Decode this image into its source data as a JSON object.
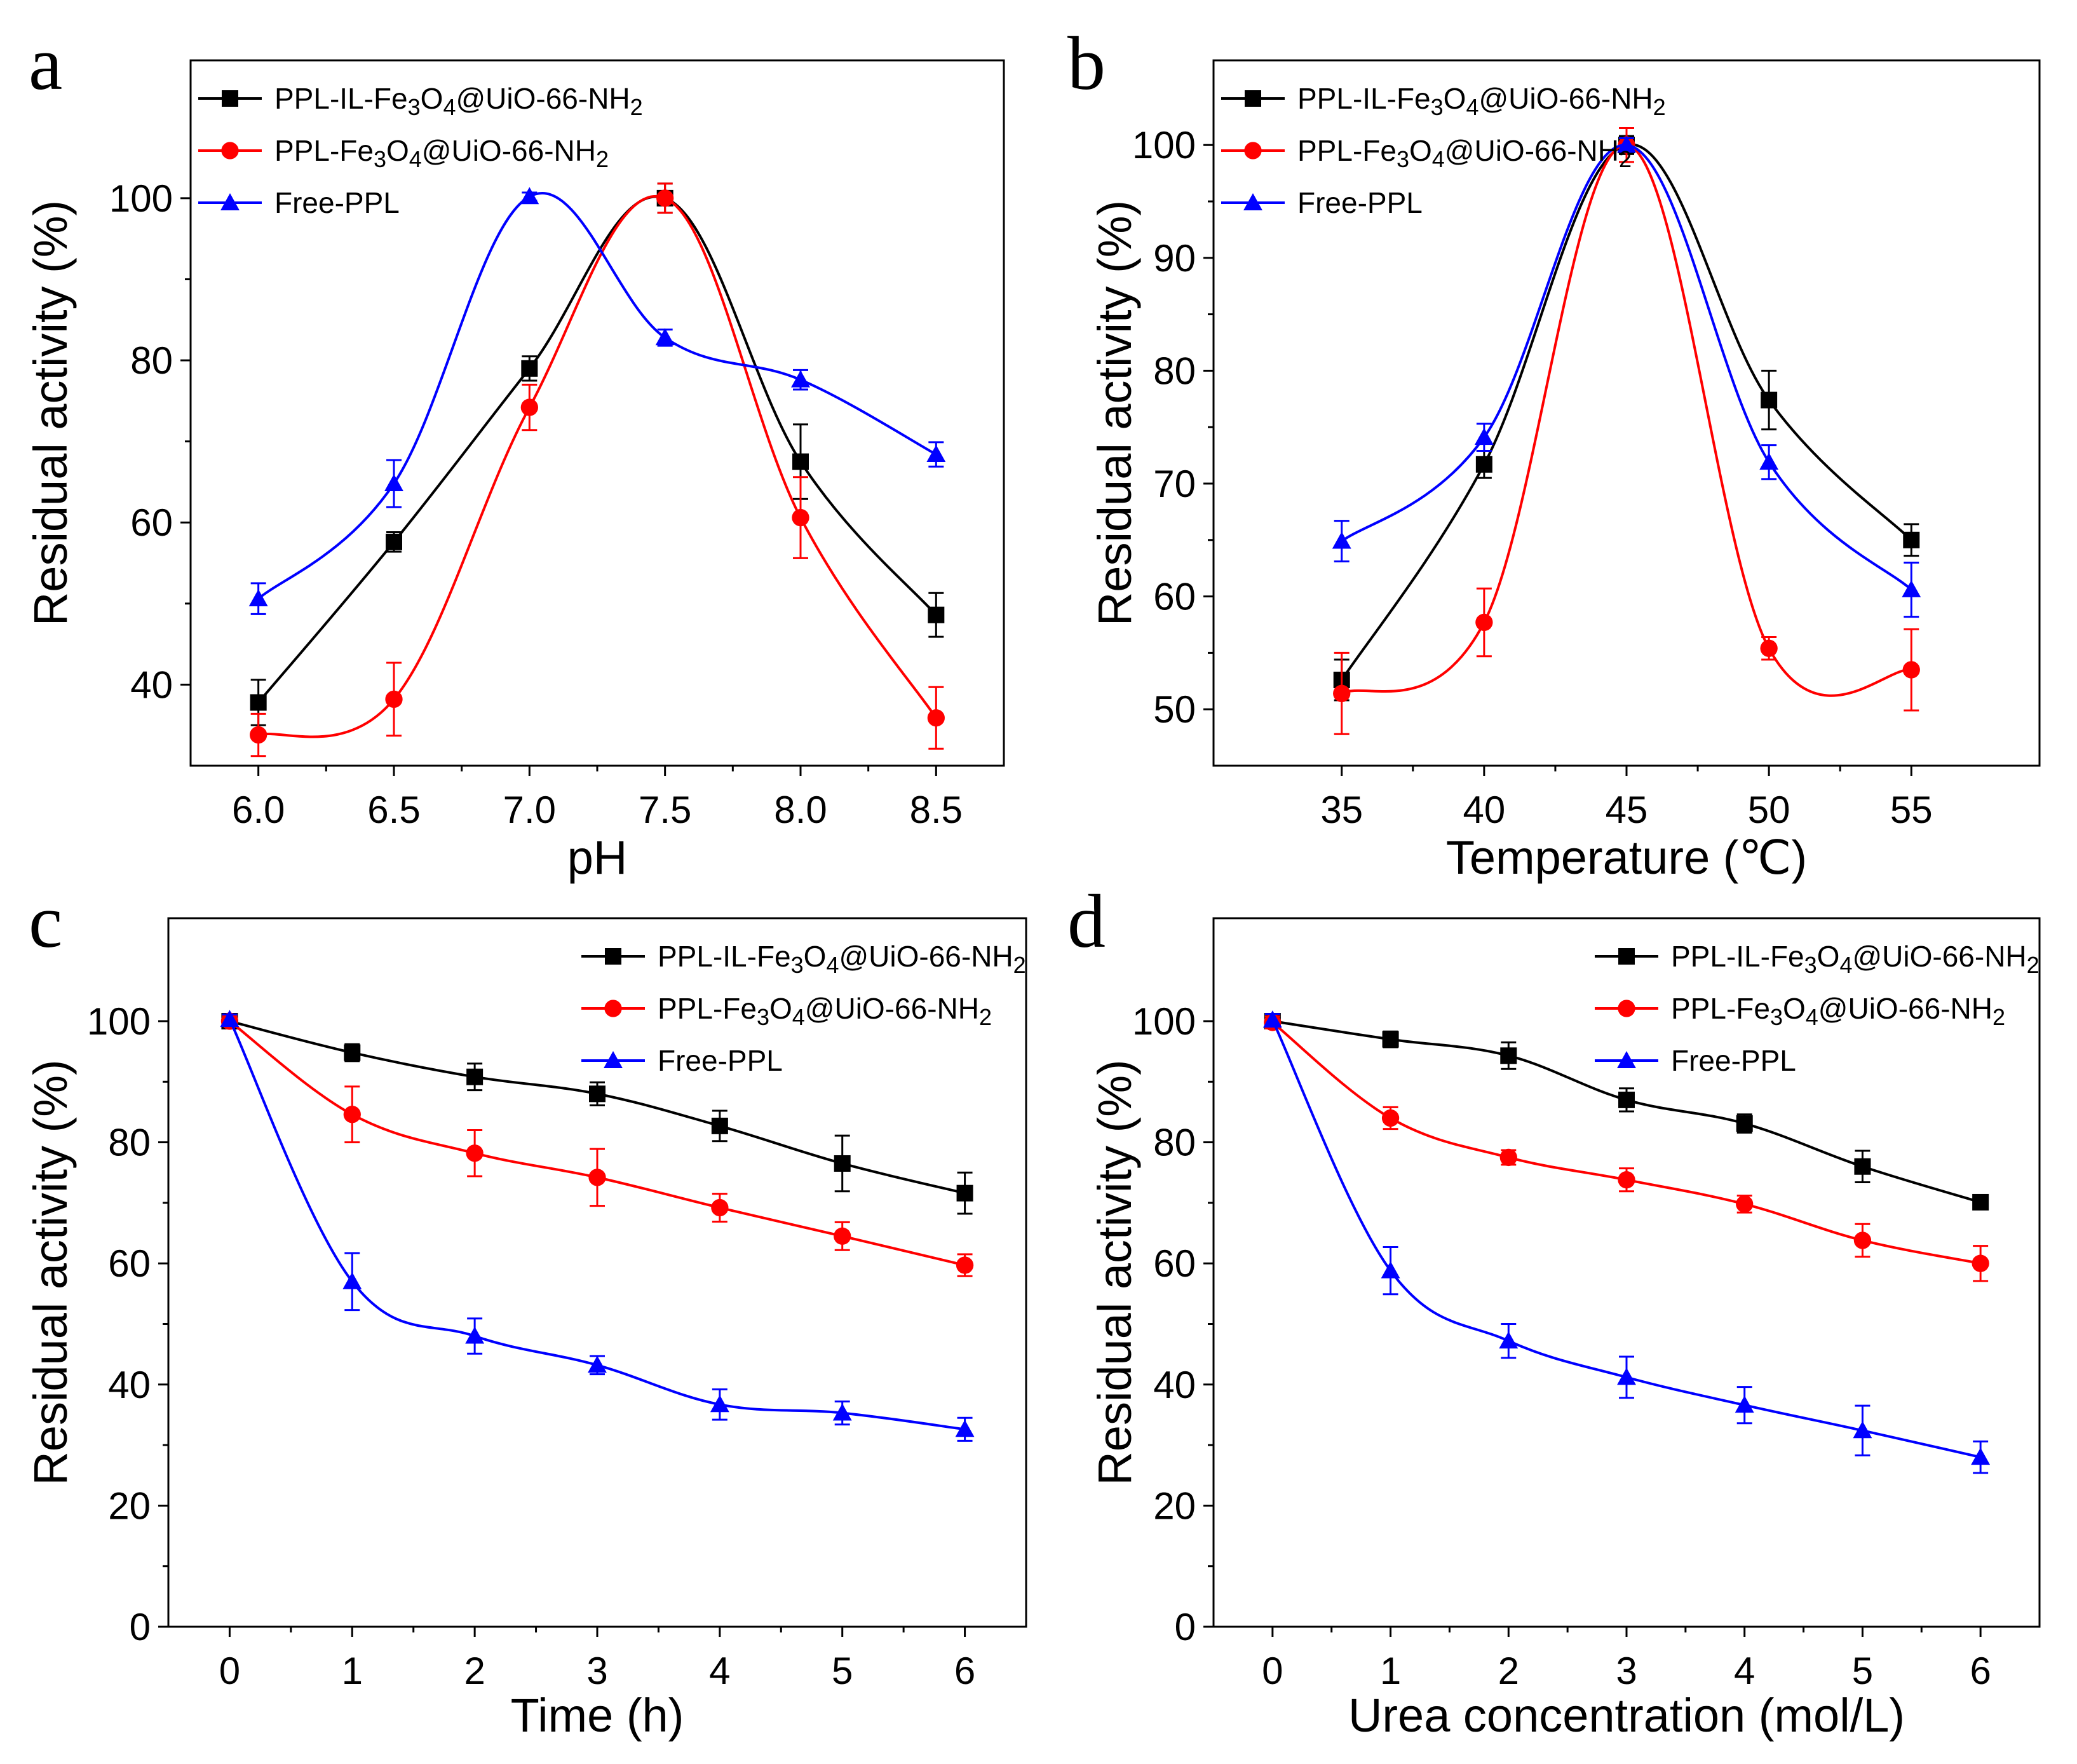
{
  "chart_data": [
    {
      "panel": "a",
      "type": "line",
      "xlabel": "pH",
      "ylabel": "Residual activity (%)",
      "xlim": [
        5.75,
        8.75
      ],
      "ylim": [
        30,
        117
      ],
      "xticks": [
        "6.0",
        "6.5",
        "7.0",
        "7.5",
        "8.0",
        "8.5"
      ],
      "yticks": [
        "40",
        "60",
        "80",
        "100"
      ],
      "legend_position": "top-left",
      "series": [
        {
          "name": "PPL-IL-Fe3O4@UiO-66-NH2",
          "color": "#000000",
          "marker": "square",
          "x": [
            6.0,
            6.5,
            7.0,
            7.5,
            8.0,
            8.5
          ],
          "values": [
            37.8,
            57.6,
            79.0,
            100.0,
            67.5,
            48.6
          ],
          "errors": [
            2.8,
            1.2,
            1.5,
            1.8,
            4.6,
            2.7
          ]
        },
        {
          "name": "PPL-Fe3O4@UiO-66-NH2",
          "color": "#ff0000",
          "marker": "circle",
          "x": [
            6.0,
            6.5,
            7.0,
            7.5,
            8.0,
            8.5
          ],
          "values": [
            33.8,
            38.2,
            74.2,
            100.0,
            60.6,
            35.9
          ],
          "errors": [
            2.6,
            4.5,
            2.8,
            1.8,
            5.0,
            3.8
          ]
        },
        {
          "name": "Free-PPL",
          "color": "#0000ff",
          "marker": "triangle",
          "x": [
            6.0,
            6.5,
            7.0,
            7.5,
            8.0,
            8.5
          ],
          "values": [
            50.6,
            64.8,
            100.2,
            82.8,
            77.6,
            68.4
          ],
          "errors": [
            1.9,
            2.9,
            0.5,
            1.0,
            1.2,
            1.5
          ]
        }
      ]
    },
    {
      "panel": "b",
      "type": "line",
      "xlabel": "Temperature (℃)",
      "ylabel": "Residual activity (%)",
      "xlim": [
        30.5,
        59.5
      ],
      "ylim": [
        45,
        107.5
      ],
      "xticks": [
        "35",
        "40",
        "45",
        "50",
        "55"
      ],
      "yticks": [
        "50",
        "60",
        "70",
        "80",
        "90",
        "100"
      ],
      "legend_position": "top-left",
      "series": [
        {
          "name": "PPL-IL-Fe3O4@UiO-66-NH2",
          "color": "#000000",
          "marker": "square",
          "x": [
            35,
            40,
            45,
            50,
            55
          ],
          "values": [
            52.6,
            71.7,
            100.0,
            77.4,
            65.0
          ],
          "errors": [
            1.8,
            1.2,
            0.8,
            2.6,
            1.4
          ]
        },
        {
          "name": "PPL-Fe3O4@UiO-66-NH2",
          "color": "#ff0000",
          "marker": "circle",
          "x": [
            35,
            40,
            45,
            50,
            55
          ],
          "values": [
            51.4,
            57.7,
            100.0,
            55.4,
            53.5
          ],
          "errors": [
            3.6,
            3.0,
            1.5,
            1.0,
            3.6
          ]
        },
        {
          "name": "Free-PPL",
          "color": "#0000ff",
          "marker": "triangle",
          "x": [
            35,
            40,
            45,
            50,
            55
          ],
          "values": [
            64.9,
            74.1,
            100.0,
            71.9,
            60.6
          ],
          "errors": [
            1.8,
            1.2,
            0.6,
            1.5,
            2.4
          ]
        }
      ]
    },
    {
      "panel": "c",
      "type": "line",
      "xlabel": "Time (h)",
      "ylabel": "Residual activity (%)",
      "xlim": [
        -0.5,
        6.5
      ],
      "ylim": [
        0,
        117
      ],
      "xticks": [
        "0",
        "1",
        "2",
        "3",
        "4",
        "5",
        "6"
      ],
      "yticks": [
        "0",
        "20",
        "40",
        "60",
        "80",
        "100"
      ],
      "legend_position": "top-right",
      "series": [
        {
          "name": "PPL-IL-Fe3O4@UiO-66-NH2",
          "color": "#000000",
          "marker": "square",
          "x": [
            0,
            1,
            2,
            3,
            4,
            5,
            6
          ],
          "values": [
            100.0,
            94.8,
            90.8,
            88.0,
            82.7,
            76.5,
            71.6
          ],
          "errors": [
            0.8,
            1.4,
            2.2,
            1.9,
            2.5,
            4.6,
            3.4
          ]
        },
        {
          "name": "PPL-Fe3O4@UiO-66-NH2",
          "color": "#ff0000",
          "marker": "circle",
          "x": [
            0,
            1,
            2,
            3,
            4,
            5,
            6
          ],
          "values": [
            100.0,
            84.6,
            78.2,
            74.2,
            69.2,
            64.5,
            59.7
          ],
          "errors": [
            0.8,
            4.6,
            3.8,
            4.7,
            2.3,
            2.3,
            1.8
          ]
        },
        {
          "name": "Free-PPL",
          "color": "#0000ff",
          "marker": "triangle",
          "x": [
            0,
            1,
            2,
            3,
            4,
            5,
            6
          ],
          "values": [
            100.3,
            57.0,
            48.0,
            43.2,
            36.7,
            35.3,
            32.6
          ],
          "errors": [
            0.8,
            4.7,
            2.9,
            1.5,
            2.5,
            1.9,
            1.9
          ]
        }
      ]
    },
    {
      "panel": "d",
      "type": "line",
      "xlabel": "Urea concentration (mol/L)",
      "ylabel": "Residual activity (%)",
      "xlim": [
        -0.5,
        6.5
      ],
      "ylim": [
        0,
        117
      ],
      "xticks": [
        "0",
        "1",
        "2",
        "3",
        "4",
        "5",
        "6"
      ],
      "yticks": [
        "0",
        "20",
        "40",
        "60",
        "80",
        "100"
      ],
      "legend_position": "top-right",
      "series": [
        {
          "name": "PPL-IL-Fe3O4@UiO-66-NH2",
          "color": "#000000",
          "marker": "square",
          "x": [
            0,
            1,
            2,
            3,
            4,
            5,
            6
          ],
          "values": [
            100.0,
            97.0,
            94.3,
            87.0,
            83.1,
            76.0,
            70.1
          ],
          "errors": [
            1.0,
            1.3,
            2.2,
            1.9,
            1.5,
            2.6,
            1.0
          ]
        },
        {
          "name": "PPL-Fe3O4@UiO-66-NH2",
          "color": "#ff0000",
          "marker": "circle",
          "x": [
            0,
            1,
            2,
            3,
            4,
            5,
            6
          ],
          "values": [
            99.8,
            84.0,
            77.5,
            73.8,
            69.8,
            63.8,
            60.0
          ],
          "errors": [
            1.0,
            1.8,
            1.2,
            1.9,
            1.4,
            2.7,
            2.9
          ]
        },
        {
          "name": "Free-PPL",
          "color": "#0000ff",
          "marker": "triangle",
          "x": [
            0,
            1,
            2,
            3,
            4,
            5,
            6
          ],
          "values": [
            100.2,
            58.8,
            47.2,
            41.2,
            36.6,
            32.4,
            28.0
          ],
          "errors": [
            1.0,
            3.9,
            2.8,
            3.4,
            3.0,
            4.1,
            2.6
          ]
        }
      ]
    }
  ]
}
